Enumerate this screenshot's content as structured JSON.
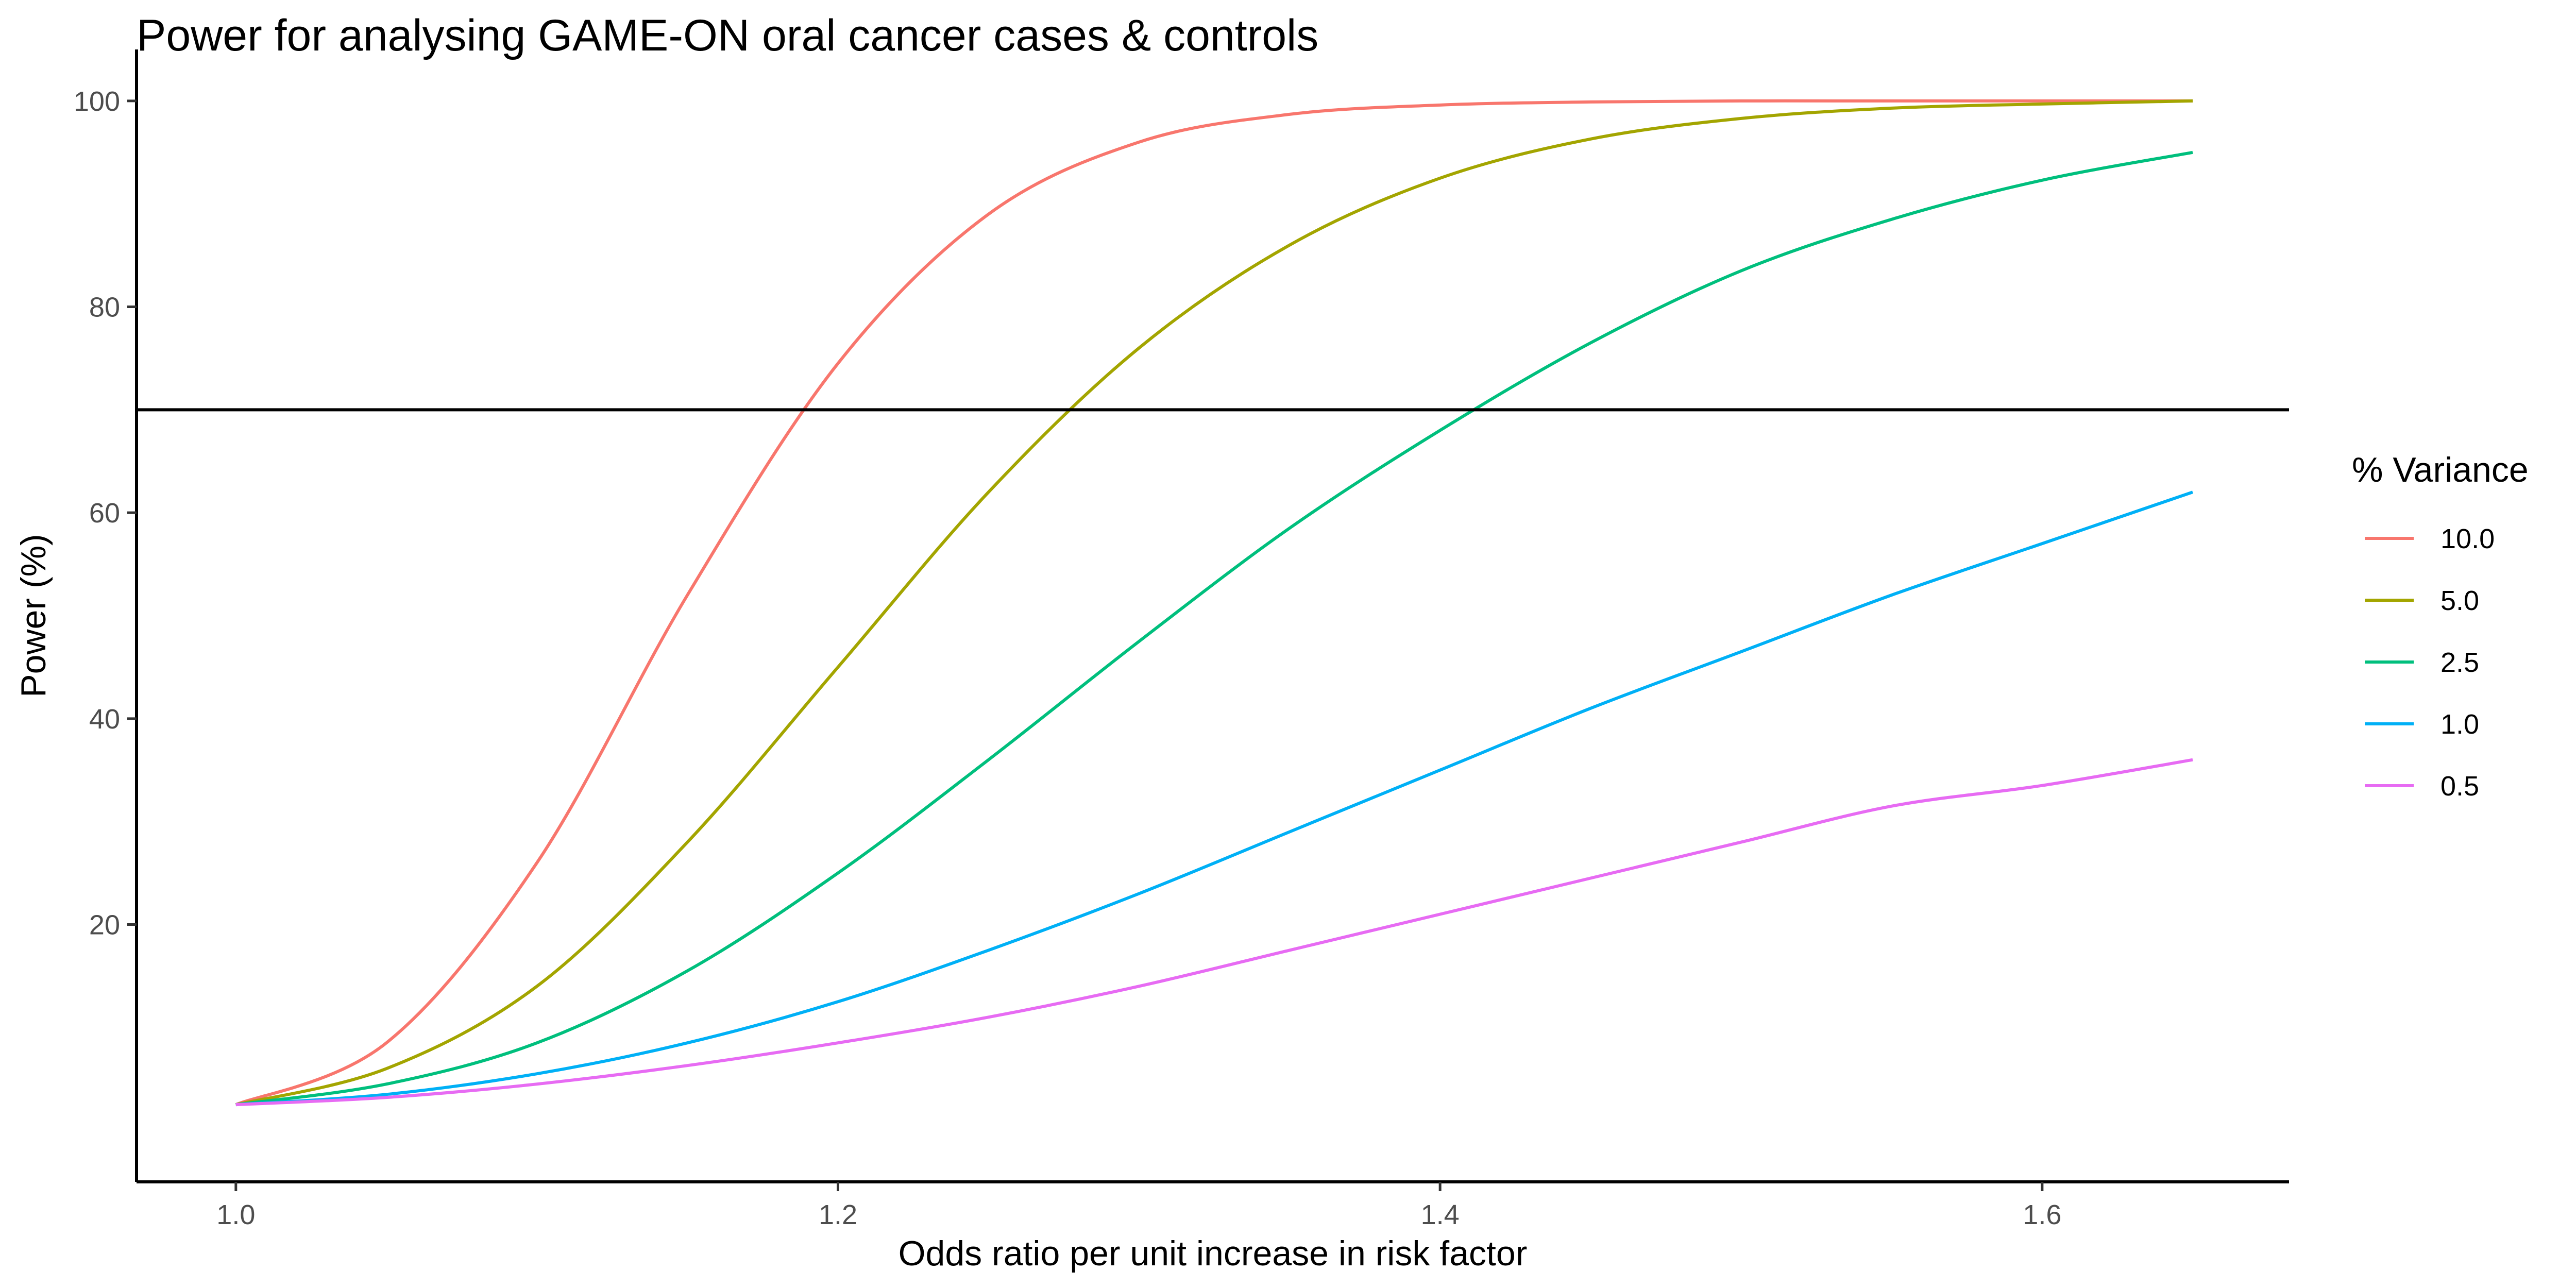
{
  "chart_data": {
    "type": "line",
    "title": "Power for analysing GAME-ON oral cancer cases & controls",
    "xlabel": "Odds ratio per unit increase in risk factor",
    "ylabel": "Power (%)",
    "xlim": [
      0.967,
      1.682
    ],
    "ylim": [
      -5.0,
      105.0
    ],
    "x_ticks": [
      1.0,
      1.2,
      1.4,
      1.6
    ],
    "x_tick_labels": [
      "1.0",
      "1.2",
      "1.4",
      "1.6"
    ],
    "y_ticks": [
      20,
      40,
      60,
      80,
      100
    ],
    "y_tick_labels": [
      "20",
      "40",
      "60",
      "80",
      "100"
    ],
    "hline": 70,
    "grid": false,
    "legend": {
      "title": "% Variance",
      "position": "right"
    },
    "x": [
      1.0,
      1.05,
      1.1,
      1.15,
      1.2,
      1.25,
      1.3,
      1.35,
      1.4,
      1.45,
      1.5,
      1.55,
      1.6,
      1.65
    ],
    "series": [
      {
        "name": "10.0",
        "color": "#F8766D",
        "values": [
          2.5,
          8.5,
          26.0,
          52.0,
          74.5,
          89.0,
          96.0,
          98.7,
          99.6,
          99.9,
          100.0,
          100.0,
          100.0,
          100.0
        ]
      },
      {
        "name": "5.0",
        "color": "#A3A500",
        "values": [
          2.5,
          6.0,
          14.0,
          28.0,
          45.0,
          62.0,
          76.0,
          86.0,
          92.5,
          96.3,
          98.3,
          99.3,
          99.7,
          100.0
        ]
      },
      {
        "name": "2.5",
        "color": "#00BF7D",
        "values": [
          2.5,
          4.5,
          8.5,
          15.5,
          25.0,
          36.0,
          47.5,
          58.5,
          68.0,
          76.5,
          83.5,
          88.5,
          92.3,
          95.0
        ]
      },
      {
        "name": "1.0",
        "color": "#00B0F6",
        "values": [
          2.5,
          3.5,
          5.5,
          8.5,
          12.5,
          17.5,
          23.0,
          29.0,
          35.0,
          41.0,
          46.5,
          52.0,
          57.0,
          62.0
        ]
      },
      {
        "name": "0.5",
        "color": "#E76BF3",
        "values": [
          2.5,
          3.2,
          4.5,
          6.3,
          8.5,
          11.0,
          14.0,
          17.5,
          21.0,
          24.5,
          28.0,
          31.5,
          33.5,
          36.0
        ]
      }
    ]
  }
}
